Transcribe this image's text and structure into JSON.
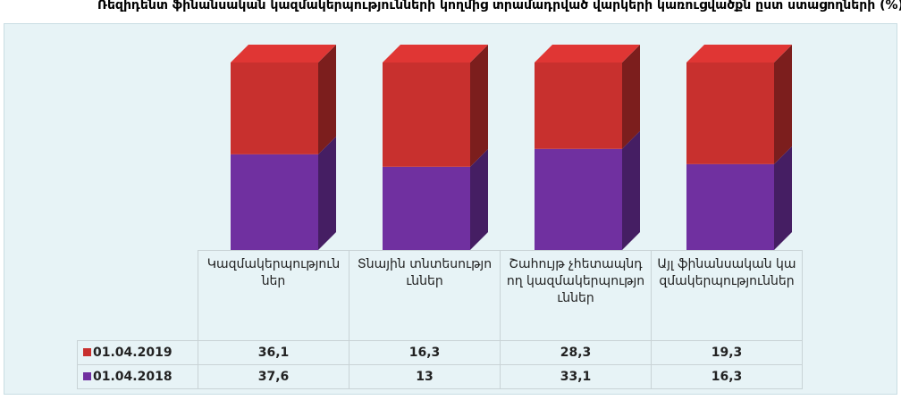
{
  "chart_data": {
    "type": "bar",
    "stacked": "percent",
    "title": "Ռեզիդենտ ֆինանսական կազմակերպությունների կողմից տրամադրված վարկերի կառուցվածքն ըստ ստացողների (%)",
    "categories": [
      "Կազմակերպություններ",
      "Տնային տնտեսություններ",
      "Շահույթ չհետապնդող կազմակերպություններ",
      "Այլ ֆինանսական կազմակերպություններ"
    ],
    "series": [
      {
        "name": "01.04.2018",
        "color": "#7030a0",
        "values": [
          37.6,
          13,
          33.1,
          16.3
        ],
        "value_labels": [
          "37,6",
          "13",
          "33,1",
          "16,3"
        ]
      },
      {
        "name": "01.04.2019",
        "color": "#c8302e",
        "values": [
          36.1,
          16.3,
          28.3,
          19.3
        ],
        "value_labels": [
          "36,1",
          "16,3",
          "28,3",
          "19,3"
        ]
      }
    ]
  }
}
